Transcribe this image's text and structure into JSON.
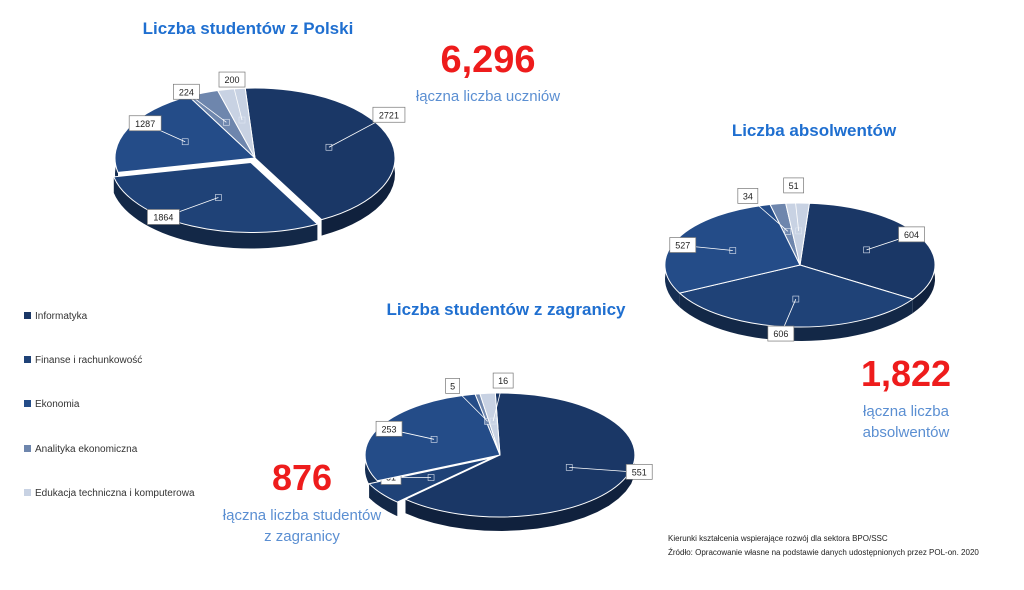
{
  "colors": {
    "slices": [
      "#1a3766",
      "#1f4277",
      "#244c88",
      "#6e86ad",
      "#c8d2e3"
    ],
    "title": "#1f6fd0",
    "big_number": "#ee1c1c",
    "subtitle": "#5b8fd2"
  },
  "legend": [
    {
      "label": "Informatyka",
      "icon": "square-marker-icon"
    },
    {
      "label": "Finanse i rachunkowość",
      "icon": "square-marker-icon"
    },
    {
      "label": "Ekonomia",
      "icon": "square-marker-icon"
    },
    {
      "label": "Analityka ekonomiczna",
      "icon": "square-marker-icon"
    },
    {
      "label": "Edukacja techniczna i komputerowa",
      "icon": "square-marker-icon"
    }
  ],
  "chart_data": [
    {
      "type": "pie",
      "title": "Liczba studentów z Polski",
      "categories": [
        "Informatyka",
        "Finanse i rachunkowość",
        "Ekonomia",
        "Analityka ekonomiczna",
        "Edukacja techniczna i komputerowa"
      ],
      "values": [
        2721,
        1864,
        1287,
        224,
        200
      ],
      "total_label": "6,296",
      "total_caption": [
        "łączna liczba uczniów"
      ]
    },
    {
      "type": "pie",
      "title": "Liczba studentów z zagranicy",
      "categories": [
        "Informatyka",
        "Finanse i rachunkowość",
        "Ekonomia",
        "Analityka ekonomiczna",
        "Edukacja techniczna i komputerowa"
      ],
      "values": [
        551,
        51,
        253,
        5,
        16
      ],
      "total_label": "876",
      "total_caption": [
        "łączna liczba studentów",
        "z zagranicy"
      ]
    },
    {
      "type": "pie",
      "title": "Liczba absolwentów",
      "categories": [
        "Informatyka",
        "Finanse i rachunkowość",
        "Ekonomia",
        "Analityka ekonomiczna",
        "Edukacja techniczna i komputerowa"
      ],
      "values": [
        604,
        606,
        527,
        34,
        51
      ],
      "total_label": "1,822",
      "total_caption": [
        "łączna liczba",
        "absolwentów"
      ]
    }
  ],
  "source": [
    "Kierunki kształcenia wspierające rozwój dla sektora BPO/SSC",
    "Źródło: Opracowanie własne na podstawie danych udostępnionych przez POL-on. 2020"
  ]
}
